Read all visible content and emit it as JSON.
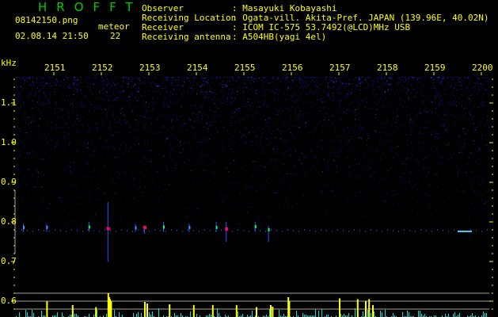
{
  "header": {
    "app_title": "HROFFT",
    "filename": "08142150.png",
    "datetime": "02.08.14 21:50",
    "meteor_label": "meteor",
    "meteor_count": "22",
    "info": [
      {
        "label": "Observer",
        "value": ": Masayuki Kobayashi"
      },
      {
        "label": "Receiving Location",
        "value": ": Ogata-vill. Akita-Pref. JAPAN (139.96E, 40.02N)"
      },
      {
        "label": "Receiver",
        "value": ": ICOM IC-575 53.7492(@LCD)MHz USB"
      },
      {
        "label": "Receiving antenna",
        "value": ": A504HB(yagi 4el)"
      }
    ]
  },
  "chart_data": {
    "type": "heatmap",
    "ylabel": "kHz",
    "ylim": [
      0.56,
      1.2
    ],
    "y_ticks": [
      "1.1",
      "1.0",
      "0.9",
      "0.8",
      "0.7",
      "0.6"
    ],
    "x_ticks": [
      "2151",
      "2152",
      "2153",
      "2154",
      "2155",
      "2156",
      "2157",
      "2158",
      "2159",
      "2200"
    ],
    "colors": {
      "text": "#ffff00",
      "title": "#00cc00",
      "noise": "#1a1aa0",
      "echo_strong": "#ff0066",
      "echo_mid": "#00ff66",
      "bar_meteor": "#ffff00",
      "bar_noise": "#00e0e0",
      "grid": "#a0a0a0"
    },
    "meteor_echoes": [
      {
        "time": 21.3,
        "freq": 0.783,
        "intensity": "strong",
        "extent": [
          0.7,
          0.85
        ]
      },
      {
        "time": 29.0,
        "freq": 0.786,
        "intensity": "strong",
        "extent": [
          0.77,
          0.79
        ]
      },
      {
        "time": 46.2,
        "freq": 0.782,
        "intensity": "strong",
        "extent": [
          0.75,
          0.8
        ]
      },
      {
        "time": 17.3,
        "freq": 0.787,
        "intensity": "mid",
        "extent": [
          0.775,
          0.8
        ]
      },
      {
        "time": 33.0,
        "freq": 0.787,
        "intensity": "mid",
        "extent": [
          0.775,
          0.8
        ]
      },
      {
        "time": 44.1,
        "freq": 0.786,
        "intensity": "mid",
        "extent": [
          0.775,
          0.8
        ]
      },
      {
        "time": 38.4,
        "freq": 0.786,
        "intensity": "weak",
        "extent": [
          0.775,
          0.795
        ]
      },
      {
        "time": 27.1,
        "freq": 0.785,
        "intensity": "weak",
        "extent": [
          0.775,
          0.795
        ]
      },
      {
        "time": 8.4,
        "freq": 0.786,
        "intensity": "weak",
        "extent": [
          0.775,
          0.795
        ]
      },
      {
        "time": 3.5,
        "freq": 0.786,
        "intensity": "weak",
        "extent": [
          0.775,
          0.795
        ]
      },
      {
        "time": 55.1,
        "freq": 0.78,
        "intensity": "mid",
        "extent": [
          0.75,
          0.79
        ]
      },
      {
        "time": 52.3,
        "freq": 0.788,
        "intensity": "mid",
        "extent": [
          0.775,
          0.8
        ]
      }
    ],
    "meteor_bars": [
      {
        "time": 21.3,
        "level": 0.62
      },
      {
        "time": 21.5,
        "level": 0.61
      },
      {
        "time": 21.7,
        "level": 0.605
      },
      {
        "time": 21.9,
        "level": 0.6
      },
      {
        "time": 8.4,
        "level": 0.6
      },
      {
        "time": 13.8,
        "level": 0.59
      },
      {
        "time": 18.7,
        "level": 0.585
      },
      {
        "time": 29.0,
        "level": 0.598
      },
      {
        "time": 29.5,
        "level": 0.594
      },
      {
        "time": 34.2,
        "level": 0.592
      },
      {
        "time": 39.3,
        "level": 0.59
      },
      {
        "time": 43.3,
        "level": 0.59
      },
      {
        "time": 48.3,
        "level": 0.59
      },
      {
        "time": 52.5,
        "level": 0.585
      },
      {
        "time": 55.5,
        "level": 0.59
      },
      {
        "time": 55.9,
        "level": 0.586
      },
      {
        "time": 59.2,
        "level": 0.61
      },
      {
        "time": 59.4,
        "level": 0.6
      },
      {
        "time": 70.0,
        "level": 0.607
      },
      {
        "time": 73.8,
        "level": 0.605
      },
      {
        "time": 75.5,
        "level": 0.6
      },
      {
        "time": 76.2,
        "level": 0.605
      },
      {
        "time": 77.0,
        "level": 0.59
      }
    ]
  }
}
